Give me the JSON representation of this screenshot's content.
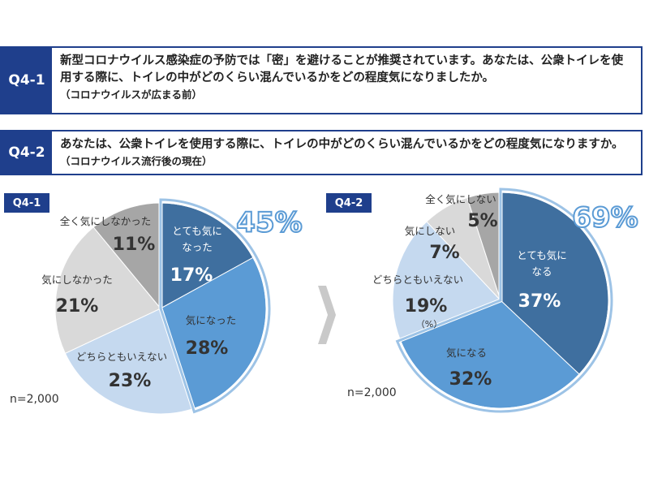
{
  "questions": [
    {
      "id": "Q4-1",
      "text": "新型コロナウイルス感染症の予防では「密」を避けることが推奨されています。あなたは、公衆トイレを使用する際に、トイレの中がどのくらい混んでいるかをどの程度気になりましたか。",
      "note": "（コロナウイルスが広まる前）"
    },
    {
      "id": "Q4-2",
      "text": "あなたは、公衆トイレを使用する際に、トイレの中がどのくらい混んでいるかをどの程度気になりますか。",
      "note": "（コロナウイルス流行後の現在）"
    }
  ],
  "chart_data": [
    {
      "type": "pie",
      "title": "Q4-1",
      "categories": [
        "とても気になった",
        "気になった",
        "どちらともいえない",
        "気にしなかった",
        "全く気にしなかった"
      ],
      "values": [
        17,
        28,
        23,
        21,
        11
      ],
      "value_labels": [
        "17%",
        "28%",
        "23%",
        "21%",
        "11%"
      ],
      "colors": [
        "#3f6f9f",
        "#5b9bd5",
        "#c5d9ef",
        "#d9d9d9",
        "#a6a6a6"
      ],
      "annotation": "45%",
      "note": "n=2,000"
    },
    {
      "type": "pie",
      "title": "Q4-2",
      "categories": [
        "とても気になる",
        "気になる",
        "どちらともいえない",
        "気にしない",
        "全く気にしない"
      ],
      "values": [
        37,
        32,
        19,
        7,
        5
      ],
      "value_labels": [
        "37%",
        "32%",
        "19%",
        "7%",
        "5%"
      ],
      "colors": [
        "#3f6f9f",
        "#5b9bd5",
        "#c5d9ef",
        "#d9d9d9",
        "#a6a6a6"
      ],
      "annotation": "69%",
      "unit_label": "（%）",
      "note": "n=2,000"
    }
  ]
}
